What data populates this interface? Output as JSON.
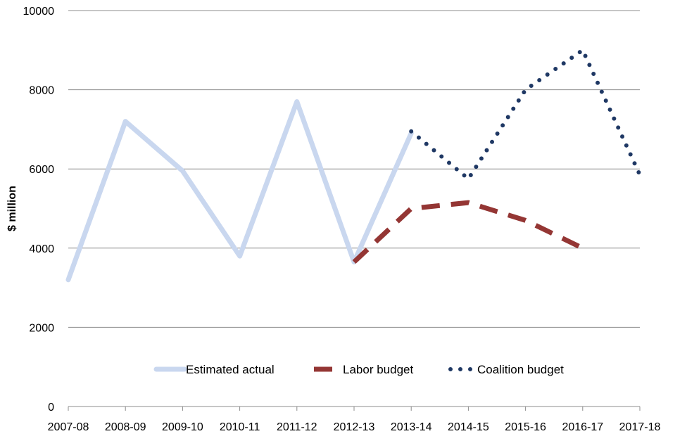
{
  "chart_data": {
    "type": "line",
    "title": "",
    "xlabel": "",
    "ylabel": "$ million",
    "categories": [
      "2007-08",
      "2008-09",
      "2009-10",
      "2010-11",
      "2011-12",
      "2012-13",
      "2013-14",
      "2014-15",
      "2015-16",
      "2016-17",
      "2017-18"
    ],
    "ylim": [
      0,
      10000
    ],
    "yticks": [
      0,
      2000,
      4000,
      6000,
      8000,
      10000
    ],
    "grid": true,
    "legend_position": "bottom",
    "series": [
      {
        "name": "Estimated actual",
        "color": "#c9d7ef",
        "style": "solid",
        "values": [
          3200,
          7200,
          5950,
          3800,
          7700,
          3650,
          6900,
          null,
          null,
          null,
          null
        ]
      },
      {
        "name": "Labor budget",
        "color": "#943634",
        "style": "dashed",
        "values": [
          null,
          null,
          null,
          null,
          null,
          3650,
          5000,
          5150,
          4700,
          4000,
          null
        ]
      },
      {
        "name": "Coalition budget",
        "color": "#1f3864",
        "style": "dotted",
        "values": [
          null,
          null,
          null,
          null,
          null,
          null,
          6950,
          5750,
          8000,
          9000,
          5850
        ]
      }
    ]
  }
}
